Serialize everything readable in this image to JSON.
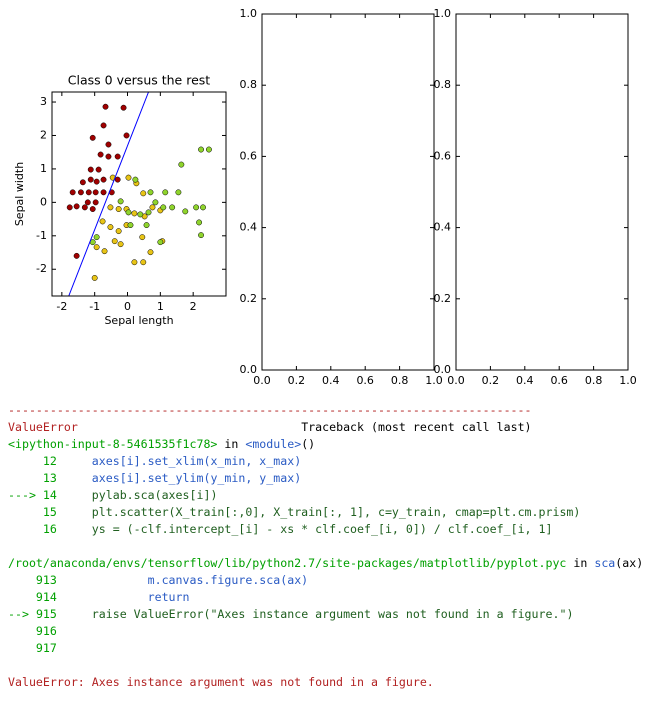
{
  "chart_data": [
    {
      "type": "scatter",
      "title": "Class 0 versus the rest",
      "xlabel": "Sepal length",
      "ylabel": "Sepal width",
      "xlim": [
        -2.3,
        3.0
      ],
      "ylim": [
        -2.8,
        3.3
      ],
      "xticks": [
        -2,
        -1,
        0,
        1,
        2
      ],
      "yticks": [
        -2,
        -1,
        0,
        1,
        2,
        3
      ],
      "series": [
        {
          "color": "#a00000",
          "x": [
            -0.67,
            -0.12,
            -0.73,
            -0.03,
            -1.06,
            -0.58,
            -0.82,
            -0.58,
            -0.3,
            -1.12,
            -0.88,
            -1.36,
            -1.12,
            -0.94,
            -0.73,
            -1.67,
            -1.42,
            -1.18,
            -0.97,
            -0.73,
            -0.48,
            -1.21,
            -0.97,
            -1.55,
            -1.76,
            -1.3,
            -1.06,
            -1.55,
            -0.3
          ],
          "values": [
            2.86,
            2.83,
            2.3,
            2.0,
            1.93,
            1.73,
            1.43,
            1.37,
            1.37,
            0.98,
            0.98,
            0.6,
            0.68,
            0.62,
            0.68,
            0.3,
            0.3,
            0.3,
            0.3,
            0.3,
            0.3,
            0,
            0,
            -0.12,
            -0.15,
            -0.15,
            -0.2,
            -1.6,
            0.68
          ]
        },
        {
          "color": "#e8c416",
          "x": [
            -0.45,
            -1,
            -0.52,
            -0.27,
            -0.03,
            0.21,
            -0.76,
            -0.52,
            -0.27,
            -0.03,
            -0.39,
            -0.21,
            -0.7,
            -0.94,
            0.21,
            0.48,
            0.7,
            0.45,
            1.06,
            0.76,
            1.0,
            0.48,
            0.03,
            0.27,
            0.52
          ],
          "values": [
            0.74,
            -2.26,
            -0.15,
            -0.2,
            -0.2,
            -0.33,
            -0.57,
            -0.74,
            -0.86,
            -0.68,
            -1.16,
            -1.25,
            -1.46,
            -1.34,
            -1.79,
            -1.79,
            -1.49,
            -1.04,
            -1.16,
            -0.15,
            -0.24,
            0.27,
            0.74,
            0.57,
            -0.42
          ]
        },
        {
          "color": "#8fd42c",
          "x": [
            0.24,
            0.7,
            0.85,
            1.15,
            1.64,
            2.24,
            2.48,
            1.55,
            1.76,
            2.09,
            2.3,
            2.18,
            2.24,
            1.36,
            1.09,
            0.64,
            0.39,
            0.03,
            0.09,
            0.58,
            1.0,
            -1.06,
            -0.94,
            -0.21
          ],
          "values": [
            0.68,
            0.3,
            0,
            0.3,
            1.13,
            1.58,
            1.58,
            0.3,
            -0.27,
            -0.15,
            -0.15,
            -0.6,
            -0.98,
            -0.15,
            -0.15,
            -0.3,
            -0.36,
            -0.3,
            -0.68,
            -0.68,
            -1.19,
            -1.19,
            -1.04,
            0.03
          ]
        },
        {
          "type": "line",
          "color": "#0000ff",
          "x": [
            -1.79,
            0.64
          ],
          "values": [
            -2.8,
            3.3
          ]
        }
      ]
    },
    {
      "type": "scatter",
      "xlim": [
        0,
        1
      ],
      "ylim": [
        0,
        1
      ],
      "xticks": [
        {
          "value": 0,
          "label": "0.0"
        },
        0.2,
        0.4,
        0.6,
        0.8,
        {
          "value": 1,
          "label": "1.0"
        }
      ],
      "yticks": [
        {
          "value": 0,
          "label": "0.0"
        },
        0.2,
        0.4,
        0.6,
        0.8,
        {
          "value": 1,
          "label": "1.0"
        }
      ],
      "series": []
    },
    {
      "type": "scatter",
      "xlim": [
        0,
        1
      ],
      "ylim": [
        0,
        1
      ],
      "xticks": [
        {
          "value": 0,
          "label": "0.0"
        },
        0.2,
        0.4,
        0.6,
        0.8,
        {
          "value": 1,
          "label": "1.0"
        }
      ],
      "yticks": [
        {
          "value": 0,
          "label": "0.0"
        },
        0.2,
        0.4,
        0.6,
        0.8,
        {
          "value": 1,
          "label": "1.0"
        }
      ],
      "series": []
    }
  ],
  "traceback": {
    "separator": "---------------------------------------------------------------------------",
    "error_name": "ValueError",
    "header": "Traceback (most recent call last)",
    "frames": [
      {
        "file": "<ipython-input-8-5461535f1c78>",
        "in": "in",
        "func": "<module>",
        "args": "()",
        "lines": [
          {
            "marker": "",
            "number": 12,
            "code": "axes[i].set_xlim(x_min, x_max)"
          },
          {
            "marker": "",
            "number": 13,
            "code": "axes[i].set_ylim(y_min, y_max)"
          },
          {
            "marker": "--->",
            "number": 14,
            "code": "pylab.sca(axes[i])"
          },
          {
            "marker": "",
            "number": 15,
            "code": "plt.scatter(X_train[:,0], X_train[:, 1], c=y_train, cmap=plt.cm.prism)"
          },
          {
            "marker": "",
            "number": 16,
            "code": "ys = (-clf.intercept_[i] - xs * clf.coef_[i, 0]) / clf.coef_[i, 1]"
          }
        ]
      },
      {
        "file": "/root/anaconda/envs/tensorflow/lib/python2.7/site-packages/matplotlib/pyplot.pyc",
        "in": "in",
        "func": "sca",
        "args": "(ax)",
        "lines": [
          {
            "marker": "",
            "number": 913,
            "code": "        m.canvas.figure.sca(ax)"
          },
          {
            "marker": "",
            "number": 914,
            "code": "        return"
          },
          {
            "marker": "-->",
            "number": 915,
            "code": "raise ValueError(\"Axes instance argument was not found in a figure.\")"
          },
          {
            "marker": "",
            "number": 916,
            "code": ""
          },
          {
            "marker": "",
            "number": 917,
            "code": ""
          }
        ]
      }
    ],
    "message": "ValueError: Axes instance argument was not found in a figure."
  }
}
